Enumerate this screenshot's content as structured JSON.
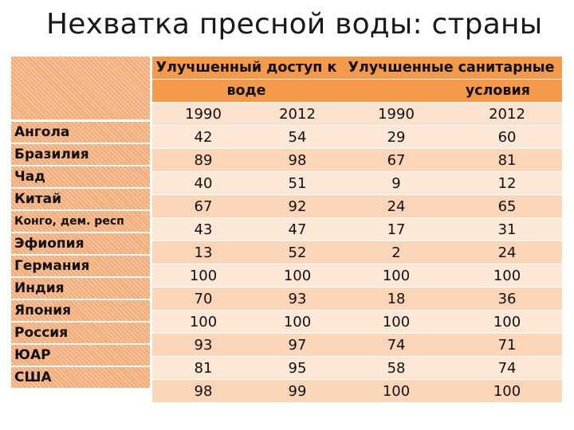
{
  "title": "Нехватка пресной воды: страны",
  "header": {
    "group_water_line1": "Улучшенный доступ к",
    "group_water_line2": "воде",
    "group_sanitation_line1": "Улучшенные санитарные",
    "group_sanitation_line2": "условия",
    "years": [
      "1990",
      "2012",
      "1990",
      "2012"
    ]
  },
  "rows": [
    {
      "country": "Ангола",
      "values": [
        "42",
        "54",
        "29",
        "60"
      ]
    },
    {
      "country": "Бразилия",
      "values": [
        "89",
        "98",
        "67",
        "81"
      ]
    },
    {
      "country": "Чад",
      "values": [
        "40",
        "51",
        "9",
        "12"
      ]
    },
    {
      "country": "Китай",
      "values": [
        "67",
        "92",
        "24",
        "65"
      ]
    },
    {
      "country": "Конго, дем. респ",
      "values": [
        "43",
        "47",
        "17",
        "31"
      ]
    },
    {
      "country": "Эфиопия",
      "values": [
        "13",
        "52",
        "2",
        "24"
      ]
    },
    {
      "country": "Германия",
      "values": [
        "100",
        "100",
        "100",
        "100"
      ]
    },
    {
      "country": "Индия",
      "values": [
        "70",
        "93",
        "18",
        "36"
      ]
    },
    {
      "country": "Япония",
      "values": [
        "100",
        "100",
        "100",
        "100"
      ]
    },
    {
      "country": "Россия",
      "values": [
        "93",
        "97",
        "74",
        "71"
      ]
    },
    {
      "country": "ЮАР",
      "values": [
        "81",
        "95",
        "58",
        "74"
      ]
    },
    {
      "country": "США",
      "values": [
        "98",
        "99",
        "100",
        "100"
      ]
    }
  ],
  "colors": {
    "header": "#f59a4b",
    "row_light": "#fde7d6",
    "row_dark": "#fbd5b8",
    "name_column": "#f3ad7a"
  }
}
